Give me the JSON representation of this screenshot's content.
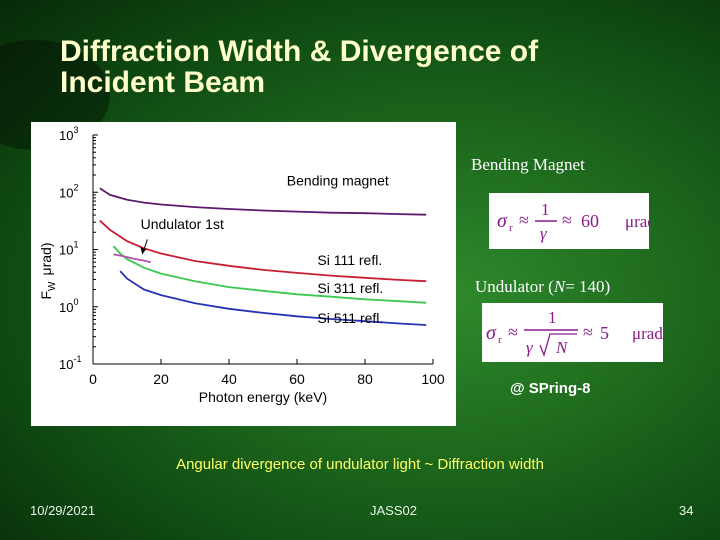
{
  "slide": {
    "title_line1": "Diffraction Width & Divergence of",
    "title_line2": "Incident Beam",
    "bending_label": "Bending Magnet",
    "undulator_label_prefix": "Undulator (",
    "undulator_label_var": "N",
    "undulator_label_suffix": "= 140)",
    "spring_label": "@ SPring-8",
    "caption": "Angular divergence of undulator light ~ Diffraction width",
    "footer": {
      "date": "10/29/2021",
      "event": "JASS02",
      "page": "34"
    }
  },
  "formulas": {
    "bending": {
      "lhs": "σ",
      "sub": "r",
      "approx": "≈",
      "num": "1",
      "den": "γ",
      "approx2": "≈",
      "value": "60",
      "unit": "μrad"
    },
    "undulator": {
      "lhs": "σ",
      "sub": "r",
      "approx": "≈",
      "num": "1",
      "den_gamma": "γ",
      "den_n": "N",
      "approx2": "≈",
      "value": "5",
      "unit": "μrad"
    }
  },
  "colors": {
    "bending": "#5b1a6e",
    "si111": "#c81e32",
    "si311": "#3cc850",
    "si511": "#2832b4",
    "title": "#ffffcc",
    "caption": "#ffff66"
  },
  "chart_data": {
    "type": "line",
    "xlabel": "Photon energy (keV)",
    "ylabel": "μrad)",
    "ylabel_pre": "F",
    "ylabel_sub": "W",
    "xlim": [
      0,
      100
    ],
    "ylim": [
      0.1,
      1000
    ],
    "yscale": "log",
    "x_ticks": [
      0,
      20,
      40,
      60,
      80,
      100
    ],
    "y_ticks": [
      {
        "base": "10",
        "exp": "-1",
        "value": 0.1
      },
      {
        "base": "10",
        "exp": "0",
        "value": 1
      },
      {
        "base": "10",
        "exp": "1",
        "value": 10
      },
      {
        "base": "10",
        "exp": "2",
        "value": 100
      },
      {
        "base": "10",
        "exp": "3",
        "value": 1000
      }
    ],
    "series": [
      {
        "name": "Bending magnet",
        "color": "#5b1a6e",
        "points": [
          [
            2,
            117
          ],
          [
            5,
            90
          ],
          [
            10,
            74
          ],
          [
            15,
            66
          ],
          [
            20,
            61
          ],
          [
            30,
            55
          ],
          [
            40,
            51
          ],
          [
            50,
            48
          ],
          [
            60,
            46
          ],
          [
            70,
            44
          ],
          [
            80,
            43
          ],
          [
            90,
            41.5
          ],
          [
            98,
            40.5
          ]
        ]
      },
      {
        "name": "Si 111 refl.",
        "color": "#c81e32",
        "points": [
          [
            2,
            32
          ],
          [
            5,
            22
          ],
          [
            10,
            14
          ],
          [
            15,
            10.5
          ],
          [
            20,
            8.5
          ],
          [
            30,
            6.3
          ],
          [
            40,
            5.2
          ],
          [
            50,
            4.4
          ],
          [
            60,
            3.9
          ],
          [
            70,
            3.5
          ],
          [
            80,
            3.2
          ],
          [
            90,
            2.95
          ],
          [
            98,
            2.8
          ]
        ]
      },
      {
        "name": "Si 311 refl.",
        "color": "#3cc850",
        "points": [
          [
            6,
            11.5
          ],
          [
            8,
            8.5
          ],
          [
            10,
            6.8
          ],
          [
            15,
            4.8
          ],
          [
            20,
            3.8
          ],
          [
            30,
            2.8
          ],
          [
            40,
            2.2
          ],
          [
            50,
            1.9
          ],
          [
            60,
            1.65
          ],
          [
            70,
            1.5
          ],
          [
            80,
            1.35
          ],
          [
            90,
            1.25
          ],
          [
            98,
            1.17
          ]
        ]
      },
      {
        "name": "Si 511 refl.",
        "color": "#2832b4",
        "points": [
          [
            8,
            4.2
          ],
          [
            10,
            3.1
          ],
          [
            15,
            2.0
          ],
          [
            20,
            1.6
          ],
          [
            30,
            1.15
          ],
          [
            40,
            0.92
          ],
          [
            50,
            0.78
          ],
          [
            60,
            0.68
          ],
          [
            70,
            0.61
          ],
          [
            80,
            0.56
          ],
          [
            90,
            0.51
          ],
          [
            98,
            0.48
          ]
        ]
      },
      {
        "name": "Undulator 1st",
        "color": "#b452b4",
        "points": [
          [
            6,
            8.2
          ],
          [
            9,
            7.6
          ],
          [
            12,
            6.9
          ],
          [
            15,
            6.4
          ],
          [
            17,
            6.0
          ]
        ]
      }
    ],
    "annotations": [
      {
        "text": "Bending magnet",
        "x": 57,
        "y": 130
      },
      {
        "text": "Undulator 1st",
        "x": 14,
        "y": 23
      },
      {
        "text": "Si 111 refl.",
        "x": 66,
        "y": 5.4
      },
      {
        "text": "Si 311 refl.",
        "x": 66,
        "y": 1.75
      },
      {
        "text": "Si 511 refl.",
        "x": 66,
        "y": 0.52
      }
    ],
    "arrow": {
      "from": [
        16,
        15
      ],
      "to": [
        14.5,
        8.3
      ]
    }
  }
}
